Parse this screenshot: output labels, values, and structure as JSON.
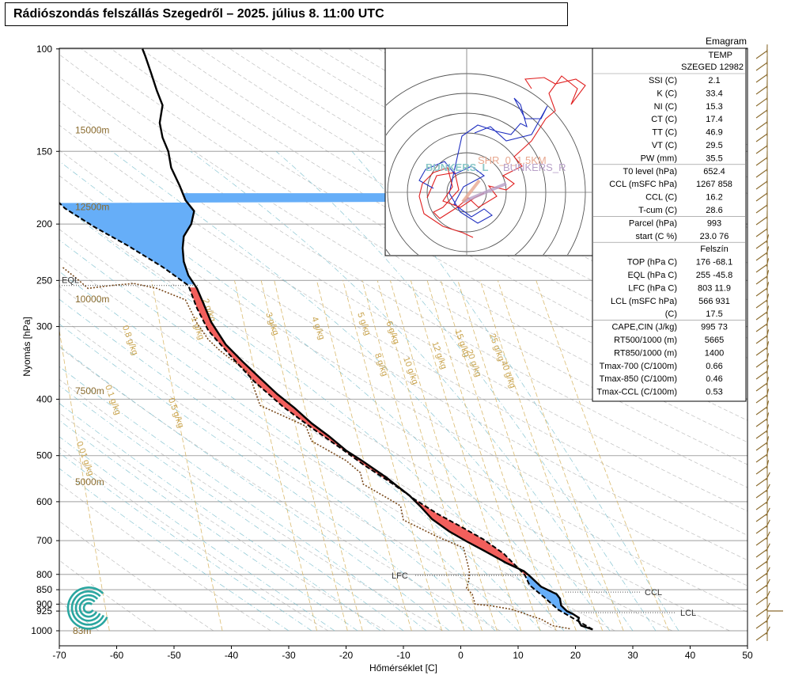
{
  "title": "Rádiószondás felszállás Szegedről – 2025. július 8. 11:00 UTC",
  "chart_data": {
    "type": "line",
    "diagram_type": "Emagram",
    "xlabel": "Hőmérséklet [C]",
    "ylabel": "Nyomás [hPa]",
    "xlim": [
      -70,
      50
    ],
    "ylim": [
      1000,
      100
    ],
    "y_scale": "log",
    "x_ticks": [
      -70,
      -60,
      -50,
      -40,
      -30,
      -20,
      -10,
      0,
      10,
      20,
      30,
      40,
      50
    ],
    "y_ticks": [
      100,
      150,
      200,
      250,
      300,
      400,
      500,
      600,
      700,
      800,
      850,
      900,
      925,
      1000
    ],
    "height_labels": [
      {
        "label": "15000m",
        "p": 138
      },
      {
        "label": "12500m",
        "p": 187
      },
      {
        "label": "10000m",
        "p": 269
      },
      {
        "label": "7500m",
        "p": 387
      },
      {
        "label": "5000m",
        "p": 555
      },
      {
        "label": "83m",
        "p": 1000
      }
    ],
    "mixing_ratio_labels": [
      "0.01 g/kg",
      "0.1 g/kg",
      "0.5 g/kg",
      "0.8 g/kg",
      "1 g/kg",
      "2 g/kg",
      "3 g/kg",
      "4 g/kg",
      "5 g/kg",
      "6 g/kg",
      "8 g/kg",
      "10 g/kg",
      "12 g/kg",
      "15 g/kg",
      "20 g/kg",
      "25 g/kg",
      "40 g/kg"
    ],
    "series": [
      {
        "kind": "temperature",
        "points": [
          [
            23,
            995
          ],
          [
            21,
            980
          ],
          [
            20.5,
            960
          ],
          [
            20.6,
            950
          ],
          [
            19.5,
            935
          ],
          [
            18.5,
            925
          ],
          [
            17.5,
            905
          ],
          [
            17.3,
            880
          ],
          [
            16.7,
            865
          ],
          [
            14,
            840
          ],
          [
            12,
            805
          ],
          [
            11,
            790
          ],
          [
            8,
            765
          ],
          [
            4,
            728
          ],
          [
            1,
            702
          ],
          [
            -2,
            675
          ],
          [
            -5,
            643
          ],
          [
            -7,
            612
          ],
          [
            -9,
            585
          ],
          [
            -11,
            565
          ],
          [
            -13,
            545
          ],
          [
            -17,
            512
          ],
          [
            -20,
            490
          ],
          [
            -23,
            463
          ],
          [
            -26,
            440
          ],
          [
            -29,
            414
          ],
          [
            -32,
            392
          ],
          [
            -35,
            368
          ],
          [
            -38,
            345
          ],
          [
            -41,
            322
          ],
          [
            -43.5,
            295
          ],
          [
            -45,
            272
          ],
          [
            -46,
            258
          ],
          [
            -47.5,
            245
          ],
          [
            -48.3,
            232
          ],
          [
            -48.5,
            220
          ],
          [
            -48.3,
            210
          ],
          [
            -47,
            200
          ],
          [
            -46.5,
            190
          ],
          [
            -48,
            182
          ],
          [
            -49,
            172
          ],
          [
            -50.5,
            160
          ],
          [
            -51,
            150
          ],
          [
            -52,
            142
          ],
          [
            -52.5,
            134
          ],
          [
            -52,
            125
          ],
          [
            -53,
            118
          ],
          [
            -54,
            110
          ],
          [
            -55,
            103
          ],
          [
            -55.5,
            100
          ]
        ]
      },
      {
        "kind": "dewpoint",
        "points": [
          [
            19,
            992
          ],
          [
            16,
            980
          ],
          [
            14,
            955
          ],
          [
            12.5,
            945
          ],
          [
            10.5,
            930
          ],
          [
            8.7,
            918
          ],
          [
            5,
            905
          ],
          [
            2.5,
            900
          ],
          [
            2,
            865
          ],
          [
            1,
            845
          ],
          [
            1.4,
            820
          ],
          [
            1.5,
            790
          ],
          [
            0.5,
            720
          ],
          [
            -4,
            690
          ],
          [
            -10,
            645
          ],
          [
            -10.5,
            610
          ],
          [
            -13,
            590
          ],
          [
            -17,
            560
          ],
          [
            -17.5,
            535
          ],
          [
            -20,
            510
          ],
          [
            -26,
            472
          ],
          [
            -27,
            445
          ],
          [
            -35,
            410
          ],
          [
            -37,
            360
          ],
          [
            -42,
            330
          ],
          [
            -44,
            316
          ],
          [
            -46,
            296
          ],
          [
            -48,
            270
          ],
          [
            -53,
            258
          ],
          [
            -57,
            253
          ],
          [
            -61,
            255
          ],
          [
            -65,
            258
          ],
          [
            -67,
            248
          ],
          [
            -69.5,
            237
          ]
        ]
      },
      {
        "kind": "parcel",
        "points": [
          [
            23,
            995
          ],
          [
            17,
            920
          ],
          [
            14.5,
            875
          ],
          [
            12,
            835
          ],
          [
            11.2,
            803
          ],
          [
            10,
            780
          ],
          [
            7.5,
            737
          ],
          [
            4,
            697
          ],
          [
            0,
            662
          ],
          [
            -4,
            630
          ],
          [
            -8,
            595
          ],
          [
            -12,
            558
          ],
          [
            -17,
            518
          ],
          [
            -21,
            485
          ],
          [
            -26,
            448
          ],
          [
            -31,
            412
          ],
          [
            -36,
            373
          ],
          [
            -40,
            338
          ],
          [
            -44,
            305
          ],
          [
            -46,
            279
          ],
          [
            -47.5,
            255
          ],
          [
            -52,
            237
          ],
          [
            -58,
            218
          ],
          [
            -64,
            202
          ],
          [
            -69,
            188
          ],
          [
            -70,
            184
          ]
        ]
      }
    ],
    "levels": [
      {
        "label": "EQL",
        "p": 255
      },
      {
        "label": "LFC",
        "p": 803
      },
      {
        "label": "CCL",
        "p": 858
      },
      {
        "label": "LCL",
        "p": 931
      }
    ],
    "hodograph_labels": [
      "SHR_0_1.5KM",
      "BUNKERS_L",
      "BUNKERS_R"
    ]
  },
  "stats": {
    "header": [
      "TEMP",
      "SZEGED 12982"
    ],
    "rows": [
      [
        "SSI (C)",
        "2.1"
      ],
      [
        "K (C)",
        "33.4"
      ],
      [
        "NI (C)",
        "15.3"
      ],
      [
        "CT (C)",
        "17.4"
      ],
      [
        "TT (C)",
        "46.9"
      ],
      [
        "VT (C)",
        "29.5"
      ],
      [
        "PW (mm)",
        "35.5"
      ],
      [
        "T0 level (hPa)",
        "652.4"
      ],
      [
        "CCL (mSFC hPa)",
        "1267  858"
      ],
      [
        "CCL (C)",
        "16.2"
      ],
      [
        "T-cum (C)",
        "28.6"
      ],
      [
        "Parcel  (hPa)",
        "993"
      ],
      [
        "start (C  %)",
        "23.0  76"
      ],
      [
        "",
        "Felszín"
      ],
      [
        "TOP (hPa  C)",
        "176  -68.1"
      ],
      [
        "EQL (hPa  C)",
        "255  -45.8"
      ],
      [
        "LFC (hPa  C)",
        "803  11.9"
      ],
      [
        "LCL (mSFC  hPa)",
        "566  931"
      ],
      [
        "(C)",
        "17.5"
      ],
      [
        "CAPE,CIN (J/kg)",
        "995  73"
      ],
      [
        "RT500/1000 (m)",
        "5665"
      ],
      [
        "RT850/1000 (m)",
        "1400"
      ],
      [
        "Tmax-700 (C/100m)",
        "0.66"
      ],
      [
        "Tmax-850 (C/100m)",
        "0.46"
      ],
      [
        "Tmax-CCL (C/100m)",
        "0.53"
      ]
    ]
  },
  "colors": {
    "cape": "#f25f5c",
    "cin": "#66aef8",
    "temperature": "#000000",
    "dewpoint": "#7a4a1c",
    "height": "#8a6b2e",
    "mixing": "#d6b460",
    "dry_adiabat": "#8a8a8a",
    "moist_adiabat": "#6bb8c8",
    "hodo_red": "#e02020",
    "hodo_blue": "#2030c0",
    "hodo_label_cyan": "#8cc8c8",
    "hodo_label_salmon": "#e8a890",
    "hodo_label_purple": "#b8a0c8",
    "wind_barb": "#8a6b2e",
    "logo": "#2aa6a0"
  }
}
